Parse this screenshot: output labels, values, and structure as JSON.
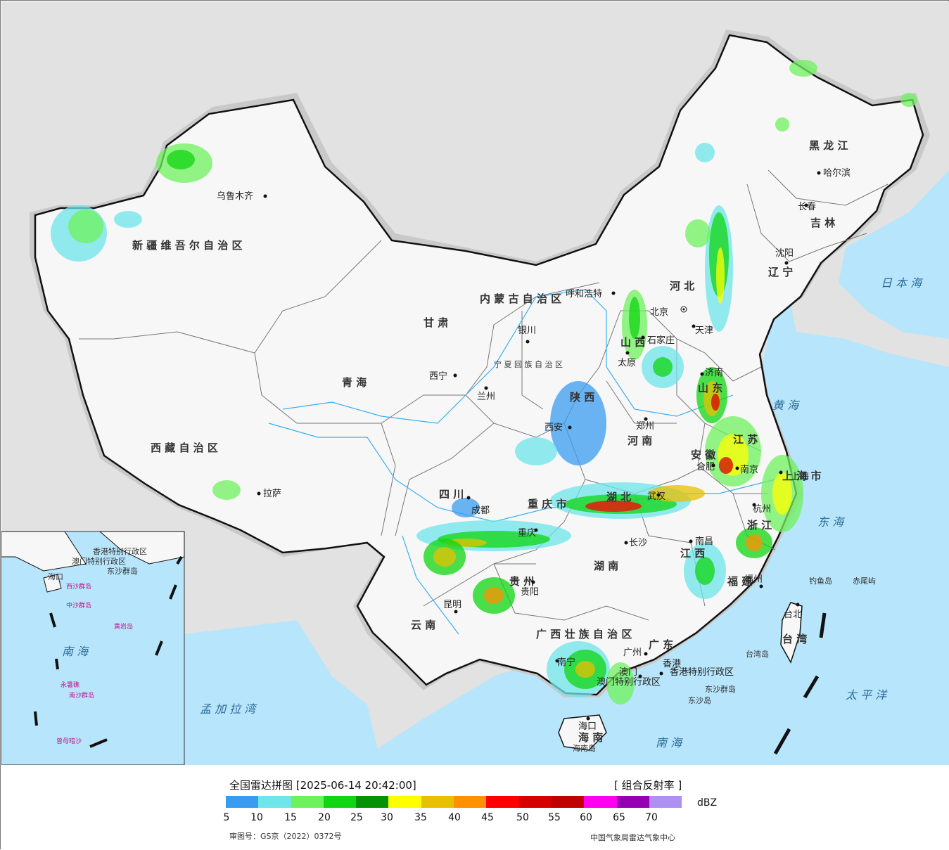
{
  "legend": {
    "title": "全国雷达拼图 [2025-06-14 20:42:00]",
    "product": "[ 组合反射率 ]",
    "unit": "dBZ",
    "ticks": [
      "5",
      "10",
      "15",
      "20",
      "25",
      "30",
      "35",
      "40",
      "45",
      "50",
      "55",
      "60",
      "65",
      "70"
    ],
    "colors": [
      "#3a9cf0",
      "#6ee6ea",
      "#6ef25c",
      "#10d612",
      "#069206",
      "#ffff00",
      "#e7c000",
      "#ff9000",
      "#ff0000",
      "#d60000",
      "#c00000",
      "#ff00f0",
      "#9600b4",
      "#ad90f0"
    ],
    "approval": "审图号：GS京（2022）0372号",
    "organization": "中国气象局雷达气象中心"
  },
  "map": {
    "colors": {
      "land": "#f7f7f7",
      "sea": "#b7e5fb",
      "outside": "#e2e2e2",
      "border": "#111111",
      "river": "#3aaef0"
    },
    "provinces": [
      "新 疆 维 吾 尔 自 治 区",
      "西 藏 自 治 区",
      "青 海",
      "甘 肃",
      "内 蒙 古 自 治 区",
      "黑 龙 江",
      "吉 林",
      "辽 宁",
      "河 北",
      "山 西",
      "陕 西",
      "四 川",
      "重 庆 市",
      "云 南",
      "贵 州",
      "湖 南",
      "湖 北",
      "河 南",
      "山 东",
      "江 苏",
      "安 徽",
      "浙 江",
      "江 西",
      "福 建",
      "广 东",
      "广 西 壮 族 自 治 区",
      "海 南",
      "台 湾",
      "上 海 市",
      "宁 夏 回 族 自 治 区"
    ],
    "cities": [
      "乌鲁木齐",
      "拉萨",
      "西宁",
      "兰州",
      "银川",
      "呼和浩特",
      "北京",
      "天津",
      "石家庄",
      "太原",
      "济南",
      "郑州",
      "西安",
      "成都",
      "重庆",
      "武汉",
      "合肥",
      "南京",
      "上海",
      "杭州",
      "南昌",
      "长沙",
      "贵阳",
      "昆明",
      "南宁",
      "广州",
      "香港",
      "澳门",
      "海口",
      "福州",
      "台北",
      "沈阳",
      "长春",
      "哈尔滨"
    ],
    "seas": [
      "日 本 海",
      "黄 海",
      "东 海",
      "太 平 洋",
      "南 海",
      "孟 加 拉 湾"
    ],
    "islands": [
      "钓鱼岛",
      "赤尾屿",
      "台湾岛",
      "东沙群岛",
      "东沙岛",
      "海南岛"
    ],
    "special_regions": [
      "香港特别行政区",
      "澳门特别行政区"
    ],
    "inset_labels": [
      "南 海",
      "中沙群岛",
      "黄岩岛",
      "西沙群岛",
      "永暑礁",
      "南沙群岛",
      "曾母暗沙",
      "东沙群岛",
      "海口",
      "香港特别行政区",
      "澳门特别行政区"
    ]
  }
}
